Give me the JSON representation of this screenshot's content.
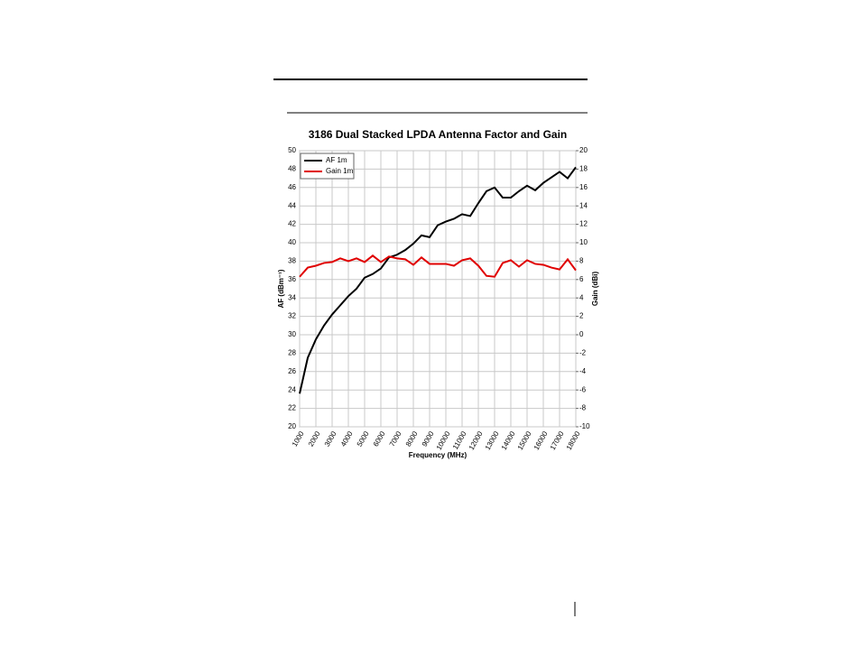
{
  "chart_data": {
    "type": "line",
    "title": "3186 Dual Stacked LPDA Antenna Factor and Gain",
    "x_label": "Frequency (MHz)",
    "y_label": "AF (dBm⁻¹)",
    "y2_label": "Gain (dBi)",
    "x": [
      1000,
      1500,
      2000,
      2500,
      3000,
      3500,
      4000,
      4500,
      5000,
      5500,
      6000,
      6500,
      7000,
      7500,
      8000,
      8500,
      9000,
      9500,
      10000,
      10500,
      11000,
      11500,
      12000,
      12500,
      13000,
      13500,
      14000,
      14500,
      15000,
      15500,
      16000,
      16500,
      17000,
      17500,
      18000
    ],
    "series": [
      {
        "name": "AF 1m",
        "color": "#000000",
        "values": [
          23.6,
          27.5,
          29.5,
          31,
          32.2,
          33.2,
          34.2,
          35,
          36.2,
          36.6,
          37.2,
          38.4,
          38.7,
          39.2,
          39.9,
          40.8,
          40.6,
          41.9,
          42.3,
          42.6,
          43.1,
          42.9,
          44.3,
          45.6,
          46,
          44.9,
          44.9,
          45.6,
          46.2,
          45.7,
          46.5,
          47.1,
          47.7,
          47,
          48.2
        ]
      },
      {
        "name": "Gain 1m",
        "color": "#e00000",
        "axis": "y2",
        "values": [
          6.3,
          7.3,
          7.5,
          7.8,
          7.9,
          8.3,
          8,
          8.3,
          7.9,
          8.6,
          7.9,
          8.5,
          8.3,
          8.2,
          7.6,
          8.4,
          7.7,
          7.7,
          7.7,
          7.5,
          8.1,
          8.3,
          7.5,
          6.4,
          6.3,
          7.8,
          8.1,
          7.4,
          8.1,
          7.7,
          7.6,
          7.3,
          7.1,
          8.2,
          7
        ]
      }
    ],
    "xlim": [
      1000,
      18000
    ],
    "xticks": [
      1000,
      2000,
      3000,
      4000,
      5000,
      6000,
      7000,
      8000,
      9000,
      10000,
      11000,
      12000,
      13000,
      14000,
      15000,
      16000,
      17000,
      18000
    ],
    "ylim": [
      20,
      50
    ],
    "yticks": [
      20,
      22,
      24,
      26,
      28,
      30,
      32,
      34,
      36,
      38,
      40,
      42,
      44,
      46,
      48,
      50
    ],
    "y2lim": [
      -10,
      20
    ],
    "y2ticks": [
      -10,
      -8,
      -6,
      -4,
      -2,
      0,
      2,
      4,
      6,
      8,
      10,
      12,
      14,
      16,
      18,
      20
    ],
    "grid": true,
    "legend": "upper-left"
  }
}
